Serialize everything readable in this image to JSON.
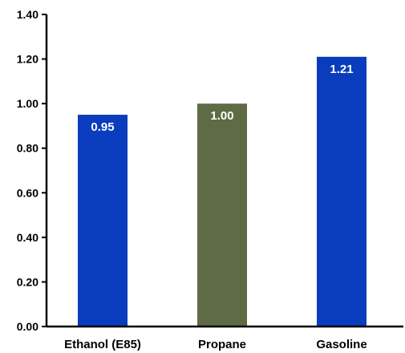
{
  "chart_data": {
    "type": "bar",
    "categories": [
      "Ethanol (E85)",
      "Propane",
      "Gasoline"
    ],
    "values": [
      0.95,
      1.0,
      1.21
    ],
    "data_labels": [
      "0.95",
      "1.00",
      "1.21"
    ],
    "bar_colors": [
      "#0a3dbd",
      "#5f6b45",
      "#0a3dbd"
    ],
    "ylim": [
      0,
      1.4
    ],
    "yticks": [
      0,
      0.2,
      0.4,
      0.6,
      0.8,
      1.0,
      1.2,
      1.4
    ],
    "ytick_labels": [
      "0.00",
      "0.20",
      "0.40",
      "0.60",
      "0.80",
      "1.00",
      "1.20",
      "1.40"
    ],
    "title": "",
    "xlabel": "",
    "ylabel": "",
    "grid": false,
    "legend": "none"
  }
}
